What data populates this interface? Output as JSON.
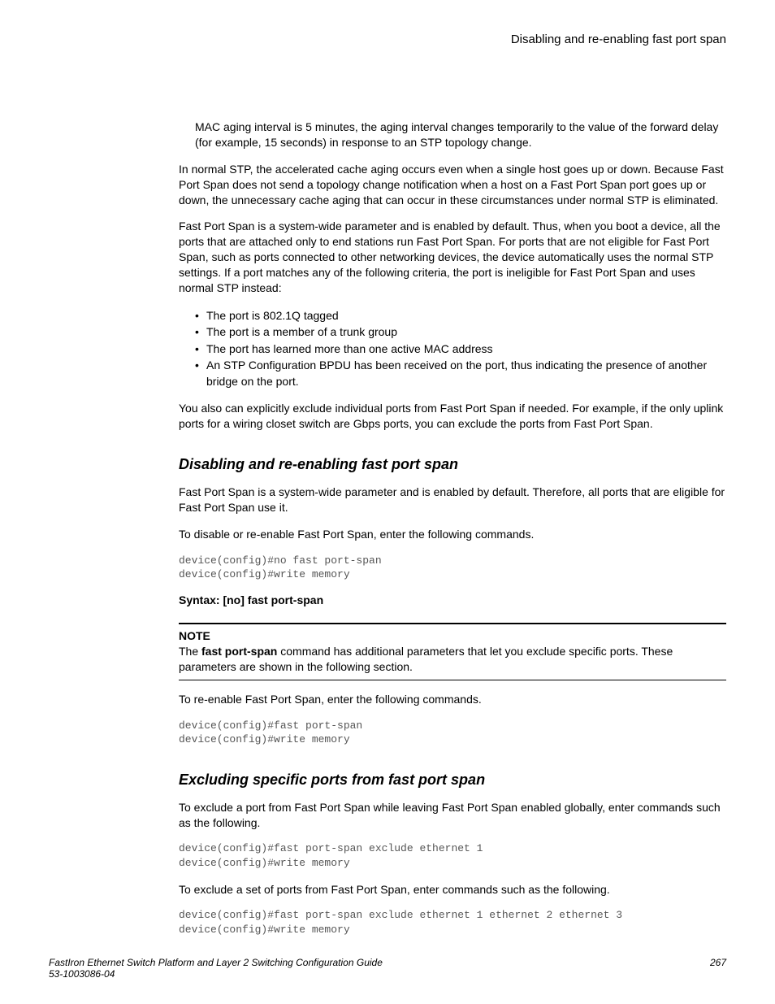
{
  "header": {
    "right_text": "Disabling and re-enabling fast port span"
  },
  "intro_indent": "MAC aging interval is 5 minutes, the aging interval changes temporarily to the value of the forward delay (for example, 15 seconds) in response to an STP topology change.",
  "para1": "In normal STP, the accelerated cache aging occurs even when a single host goes up or down. Because Fast Port Span does not send a topology change notification when a host on a Fast Port Span port goes up or down, the unnecessary cache aging that can occur in these circumstances under normal STP is eliminated.",
  "para2": "Fast Port Span is a system-wide parameter and is enabled by default. Thus, when you boot a device, all the ports that are attached only to end stations run Fast Port Span. For ports that are not eligible for Fast Port Span, such as ports connected to other networking devices, the device automatically uses the normal STP settings. If a port matches any of the following criteria, the port is ineligible for Fast Port Span and uses normal STP instead:",
  "bullets": [
    "The port is 802.1Q tagged",
    "The port is a member of a trunk group",
    "The port has learned more than one active MAC address",
    "An STP Configuration BPDU has been received on the port, thus indicating the presence of another bridge on the port."
  ],
  "para3": "You also can explicitly exclude individual ports from Fast Port Span if needed. For example, if the only uplink ports for a wiring closet switch are Gbps ports, you can exclude the ports from Fast Port Span.",
  "section1": {
    "title": "Disabling and re-enabling fast port span",
    "p1": "Fast Port Span is a system-wide parameter and is enabled by default. Therefore, all ports that are eligible for Fast Port Span use it.",
    "p2": "To disable or re-enable Fast Port Span, enter the following commands.",
    "code1": "device(config)#no fast port-span\ndevice(config)#write memory",
    "syntax": "Syntax: [no] fast port-span",
    "note_label": "NOTE",
    "note_text_pre": "The ",
    "note_bold": "fast port-span",
    "note_text_post": " command has additional parameters that let you exclude specific ports. These parameters are shown in the following section.",
    "p3": "To re-enable Fast Port Span, enter the following commands.",
    "code2": "device(config)#fast port-span\ndevice(config)#write memory"
  },
  "section2": {
    "title": "Excluding specific ports from fast port span",
    "p1": "To exclude a port from Fast Port Span while leaving Fast Port Span enabled globally, enter commands such as the following.",
    "code1": "device(config)#fast port-span exclude ethernet 1\ndevice(config)#write memory",
    "p2": "To exclude a set of ports from Fast Port Span, enter commands such as the following.",
    "code2": "device(config)#fast port-span exclude ethernet 1 ethernet 2 ethernet 3\ndevice(config)#write memory"
  },
  "footer": {
    "title": "FastIron Ethernet Switch Platform and Layer 2 Switching Configuration Guide",
    "doc_id": "53-1003086-04",
    "page": "267"
  }
}
